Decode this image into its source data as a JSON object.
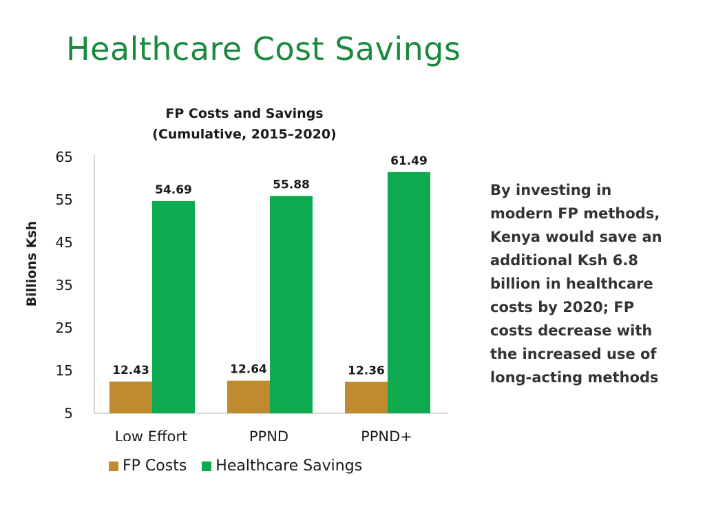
{
  "slide": {
    "title": "Healthcare Cost Savings"
  },
  "chart_data": {
    "type": "bar",
    "title_lines": [
      "FP Costs and Savings",
      "(Cumulative, 2015–2020)"
    ],
    "ylabel": "Billions Ksh",
    "xlabel": "",
    "categories": [
      "Low Effort",
      "PPND",
      "PPND+"
    ],
    "ylim": [
      5,
      65
    ],
    "yticks": [
      5,
      15,
      25,
      35,
      45,
      55,
      65
    ],
    "grid": false,
    "legend_position": "bottom",
    "series": [
      {
        "name": "FP Costs",
        "color": "#c08a2e",
        "values": [
          12.43,
          12.64,
          12.36
        ]
      },
      {
        "name": "Healthcare Savings",
        "color": "#0eaa4f",
        "values": [
          54.69,
          55.88,
          61.49
        ]
      }
    ]
  },
  "note": {
    "lines": [
      "By investing in",
      "modern FP methods,",
      "Kenya would save an",
      "additional Ksh 6.8",
      "billion in healthcare",
      "costs by 2020; FP",
      "costs decrease with",
      "the increased use of",
      "long-acting methods"
    ]
  }
}
